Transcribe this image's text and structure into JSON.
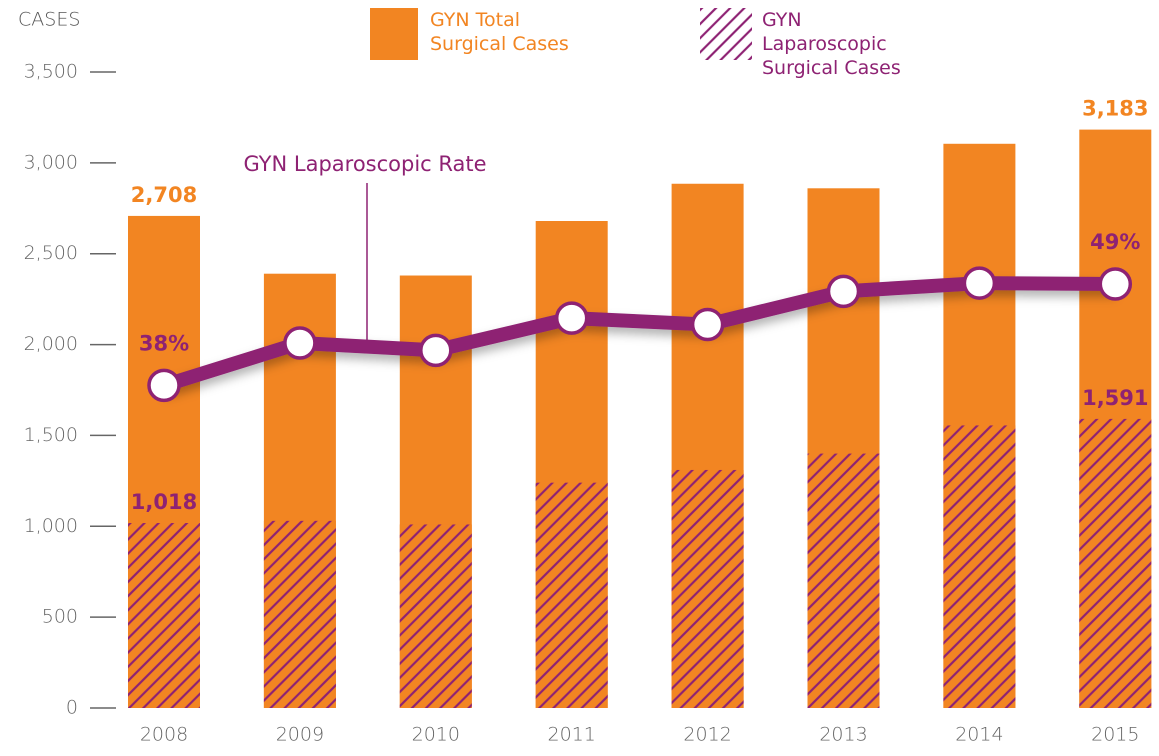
{
  "chart_data": {
    "type": "bar",
    "y_axis_label": "CASES",
    "categories": [
      "2008",
      "2009",
      "2010",
      "2011",
      "2012",
      "2013",
      "2014",
      "2015"
    ],
    "ylim": [
      0,
      3500
    ],
    "yticks": [
      0,
      500,
      {
        "value": 1000,
        "label": "1,000"
      },
      {
        "value": 1500,
        "label": "1,500"
      },
      {
        "value": 2000,
        "label": "2,000"
      },
      {
        "value": 2500,
        "label": "2,500"
      },
      {
        "value": 3000,
        "label": "3,000"
      },
      {
        "value": 3500,
        "label": "3,500"
      }
    ],
    "y2lim": [
      3,
      72
    ],
    "series": [
      {
        "name": "GYN Total Surgical Cases",
        "type": "bar",
        "color": "#f28522",
        "values": [
          2708,
          2390,
          2380,
          2680,
          2885,
          2860,
          3105,
          3183
        ],
        "value_labels": [
          "2,708",
          null,
          null,
          null,
          null,
          null,
          null,
          "3,183"
        ]
      },
      {
        "name": "GYN Laparoscopic Surgical Cases",
        "type": "bar",
        "pattern": "hatch",
        "color": "#8e2273",
        "values": [
          1018,
          1030,
          1010,
          1240,
          1310,
          1400,
          1555,
          1591
        ],
        "value_labels": [
          "1,018",
          null,
          null,
          null,
          null,
          null,
          null,
          "1,591"
        ]
      },
      {
        "name": "GYN Laparoscopic Rate",
        "type": "line",
        "axis": "y2",
        "color": "#8e2273",
        "values": [
          38,
          42.6,
          41.8,
          45.3,
          44.6,
          48.2,
          49.1,
          49
        ],
        "value_labels": [
          "38%",
          null,
          null,
          null,
          null,
          null,
          null,
          "49%"
        ]
      }
    ]
  }
}
